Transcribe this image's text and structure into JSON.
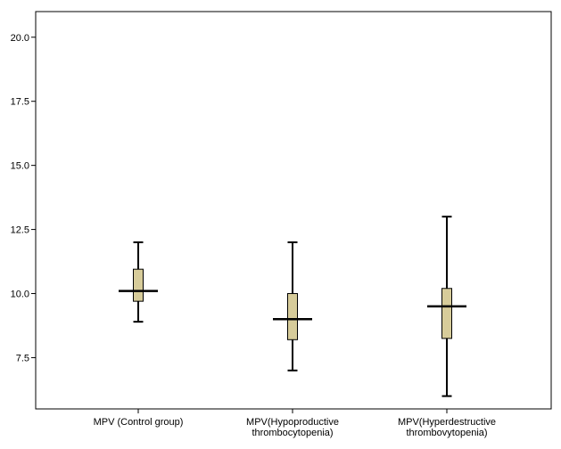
{
  "chart_data": {
    "type": "boxplot",
    "title": "",
    "xlabel": "",
    "ylabel": "",
    "ylim": [
      5.5,
      21.0
    ],
    "yticks": [
      7.5,
      10.0,
      12.5,
      15.0,
      17.5,
      20.0
    ],
    "ytick_labels": [
      "7.5",
      "10.0",
      "12.5",
      "15.0",
      "17.5",
      "20.0"
    ],
    "grid": false,
    "box_color": "#d7cc9a",
    "categories": [
      {
        "label_lines": [
          "MPV (Control group)"
        ],
        "min": 8.9,
        "q1": 9.7,
        "median": 10.1,
        "q3": 10.95,
        "max": 12.0
      },
      {
        "label_lines": [
          "MPV(Hypoproductive",
          "thrombocytopenia)"
        ],
        "min": 7.0,
        "q1": 8.2,
        "median": 9.0,
        "q3": 10.0,
        "max": 12.0
      },
      {
        "label_lines": [
          "MPV(Hyperdestructive",
          "thrombovytopenia)"
        ],
        "min": 6.0,
        "q1": 8.25,
        "median": 9.5,
        "q3": 10.2,
        "max": 13.0
      }
    ]
  }
}
